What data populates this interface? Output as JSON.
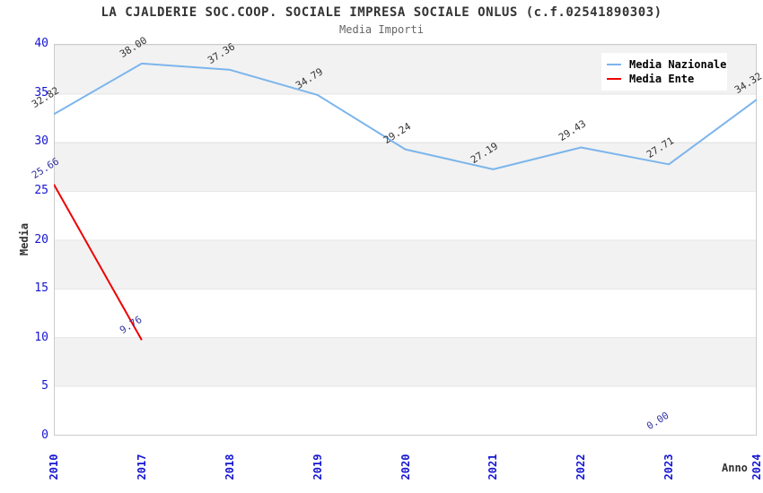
{
  "chart_data": {
    "type": "line",
    "title": "LA CJALDERIE SOC.COOP. SOCIALE IMPRESA SOCIALE ONLUS (c.f.02541890303)",
    "subtitle": "Media Importi",
    "xlabel": "Anno",
    "ylabel": "Media",
    "ylim": [
      0,
      40
    ],
    "y_ticks": [
      0,
      5,
      10,
      15,
      20,
      25,
      30,
      35,
      40
    ],
    "categories": [
      "2010",
      "2017",
      "2018",
      "2019",
      "2020",
      "2021",
      "2022",
      "2023",
      "2024"
    ],
    "grid": "horizontal-bands",
    "legend_position": "top-right",
    "band_colors": [
      "#f2f2f2",
      "#ffffff"
    ],
    "axis_label_color": "#1515d2",
    "series": [
      {
        "name": "Media Nazionale",
        "color": "#7cb5ec",
        "label_color": "#333333",
        "values": [
          32.82,
          38.0,
          37.36,
          34.79,
          29.24,
          27.19,
          29.43,
          27.71,
          34.32
        ]
      },
      {
        "name": "Media Ente",
        "color": "#ee0000",
        "label_color": "#3333a0",
        "values": [
          25.66,
          9.76,
          null,
          null,
          null,
          null,
          null,
          0.0,
          null
        ]
      }
    ]
  }
}
